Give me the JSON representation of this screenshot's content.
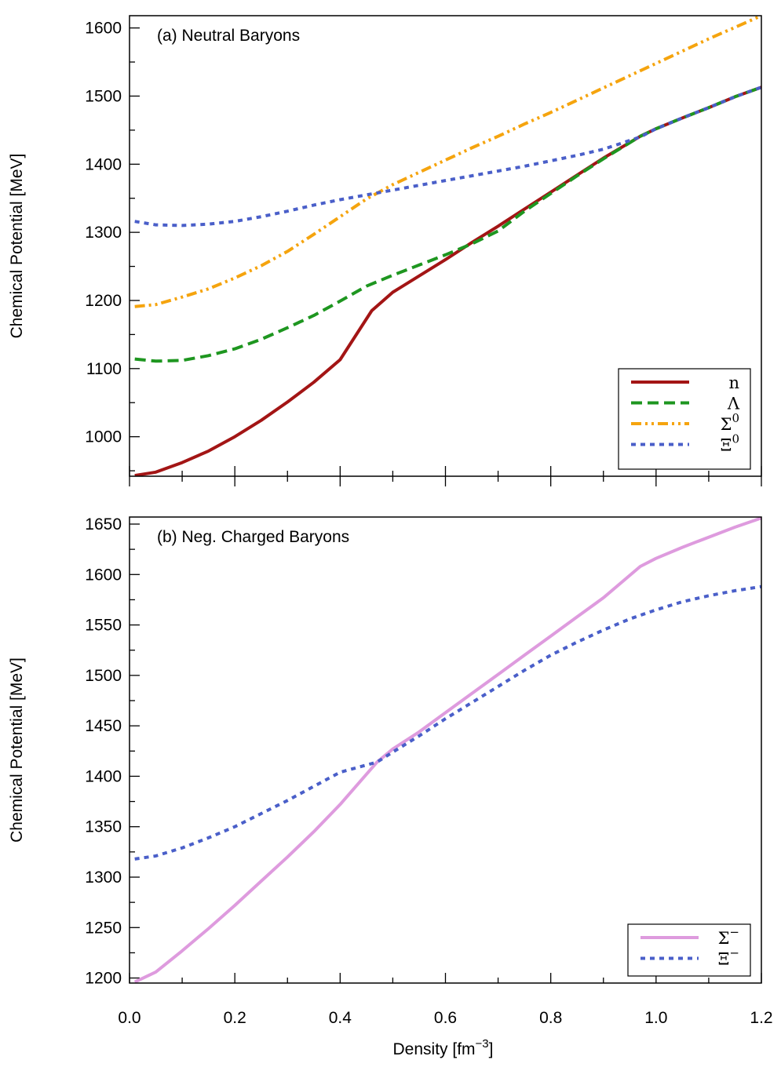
{
  "chart_data": [
    {
      "type": "line",
      "panel_label": "(a) Neutral Baryons",
      "xlabel": "",
      "ylabel": "Chemical Potential [MeV]",
      "xlim": [
        0.0,
        1.2
      ],
      "ylim": [
        942,
        1618
      ],
      "y_ticks": [
        1000,
        1100,
        1200,
        1300,
        1400,
        1500,
        1600
      ],
      "y_tick_labels": [
        "1000",
        "1100",
        "1200",
        "1300",
        "1400",
        "1500",
        "1600"
      ],
      "legend_position": "bottom-right",
      "series": [
        {
          "name": "n",
          "label_base": "n",
          "label_sup": "",
          "color": "#a31515",
          "style": "solid",
          "x": [
            0.01,
            0.05,
            0.1,
            0.15,
            0.2,
            0.25,
            0.3,
            0.35,
            0.4,
            0.46,
            0.5,
            0.55,
            0.6,
            0.65,
            0.7,
            0.75,
            0.8,
            0.85,
            0.9,
            0.97,
            1.0,
            1.05,
            1.1,
            1.15,
            1.2
          ],
          "y": [
            943,
            948,
            962,
            979,
            1000,
            1024,
            1051,
            1080,
            1113,
            1185,
            1212,
            1236,
            1260,
            1285,
            1309,
            1334,
            1359,
            1384,
            1409,
            1441,
            1452,
            1468,
            1483,
            1499,
            1513
          ]
        },
        {
          "name": "Λ",
          "label_base": "Λ",
          "label_sup": "",
          "color": "#1e9620",
          "style": "dashed",
          "x": [
            0.01,
            0.05,
            0.1,
            0.15,
            0.2,
            0.25,
            0.3,
            0.35,
            0.4,
            0.45,
            0.5,
            0.55,
            0.6,
            0.65,
            0.7,
            0.75,
            0.8,
            0.85,
            0.9,
            0.97,
            1.0,
            1.05,
            1.1,
            1.15,
            1.2
          ],
          "y": [
            1114,
            1111,
            1112,
            1119,
            1129,
            1143,
            1160,
            1178,
            1199,
            1221,
            1237,
            1252,
            1267,
            1283,
            1302,
            1331,
            1357,
            1383,
            1408,
            1441,
            1452,
            1468,
            1483,
            1499,
            1513
          ]
        },
        {
          "name": "Σ0",
          "label_base": "Σ",
          "label_sup": "0",
          "color": "#f5a40e",
          "style": "dashdotdot",
          "x": [
            0.01,
            0.05,
            0.1,
            0.15,
            0.2,
            0.25,
            0.3,
            0.35,
            0.4,
            0.45,
            0.5,
            0.55,
            0.6,
            0.65,
            0.7,
            0.75,
            0.8,
            0.85,
            0.9,
            0.95,
            1.0,
            1.05,
            1.1,
            1.15,
            1.2
          ],
          "y": [
            1191,
            1194,
            1205,
            1217,
            1233,
            1251,
            1272,
            1297,
            1323,
            1349,
            1370,
            1388,
            1406,
            1424,
            1441,
            1459,
            1476,
            1494,
            1512,
            1530,
            1548,
            1566,
            1584,
            1601,
            1618
          ]
        },
        {
          "name": "Ξ0",
          "label_base": "Ξ",
          "label_sup": "0",
          "color": "#4a5fc9",
          "style": "dotted",
          "x": [
            0.01,
            0.05,
            0.1,
            0.15,
            0.2,
            0.25,
            0.3,
            0.35,
            0.4,
            0.45,
            0.5,
            0.55,
            0.6,
            0.65,
            0.7,
            0.75,
            0.8,
            0.85,
            0.9,
            0.97,
            1.0,
            1.05,
            1.1,
            1.15,
            1.2
          ],
          "y": [
            1316,
            1311,
            1310,
            1312,
            1316,
            1323,
            1331,
            1340,
            1348,
            1355,
            1362,
            1369,
            1376,
            1383,
            1390,
            1397,
            1405,
            1413,
            1422,
            1440,
            1452,
            1468,
            1483,
            1499,
            1513
          ]
        }
      ]
    },
    {
      "type": "line",
      "panel_label": "(b) Neg. Charged Baryons",
      "xlabel": "Density [fm−3]",
      "xlabel_base": "Density  [fm",
      "xlabel_sup": "−3",
      "xlabel_end": "]",
      "ylabel": "Chemical Potential [MeV]",
      "xlim": [
        0.0,
        1.2
      ],
      "ylim": [
        1195,
        1657
      ],
      "x_ticks": [
        0.0,
        0.2,
        0.4,
        0.6,
        0.8,
        1.0,
        1.2
      ],
      "x_tick_labels": [
        "0.0",
        "0.2",
        "0.4",
        "0.6",
        "0.8",
        "1.0",
        "1.2"
      ],
      "y_ticks": [
        1200,
        1250,
        1300,
        1350,
        1400,
        1450,
        1500,
        1550,
        1600,
        1650
      ],
      "y_tick_labels": [
        "1200",
        "1250",
        "1300",
        "1350",
        "1400",
        "1450",
        "1500",
        "1550",
        "1600",
        "1650"
      ],
      "legend_position": "bottom-right",
      "series": [
        {
          "name": "Σ−",
          "label_base": "Σ",
          "label_sup": "−",
          "color": "#de9bde",
          "style": "solid",
          "x": [
            0.01,
            0.05,
            0.1,
            0.15,
            0.2,
            0.25,
            0.3,
            0.35,
            0.4,
            0.47,
            0.5,
            0.55,
            0.6,
            0.65,
            0.7,
            0.75,
            0.8,
            0.85,
            0.9,
            0.97,
            1.0,
            1.05,
            1.1,
            1.15,
            1.2
          ],
          "y": [
            1196,
            1206,
            1227,
            1249,
            1272,
            1296,
            1320,
            1345,
            1372,
            1414,
            1427,
            1444,
            1463,
            1482,
            1501,
            1520,
            1539,
            1558,
            1577,
            1608,
            1616,
            1627,
            1637,
            1647,
            1656
          ]
        },
        {
          "name": "Ξ−",
          "label_base": "Ξ",
          "label_sup": "−",
          "color": "#4a5fc9",
          "style": "dotted",
          "x": [
            0.01,
            0.05,
            0.1,
            0.15,
            0.2,
            0.25,
            0.3,
            0.35,
            0.4,
            0.47,
            0.5,
            0.55,
            0.6,
            0.65,
            0.7,
            0.75,
            0.8,
            0.85,
            0.9,
            0.95,
            1.0,
            1.05,
            1.1,
            1.15,
            1.2
          ],
          "y": [
            1318,
            1321,
            1329,
            1339,
            1350,
            1363,
            1376,
            1390,
            1404,
            1414,
            1424,
            1440,
            1457,
            1473,
            1489,
            1505,
            1520,
            1533,
            1545,
            1556,
            1565,
            1573,
            1579,
            1584,
            1588
          ]
        }
      ]
    }
  ]
}
